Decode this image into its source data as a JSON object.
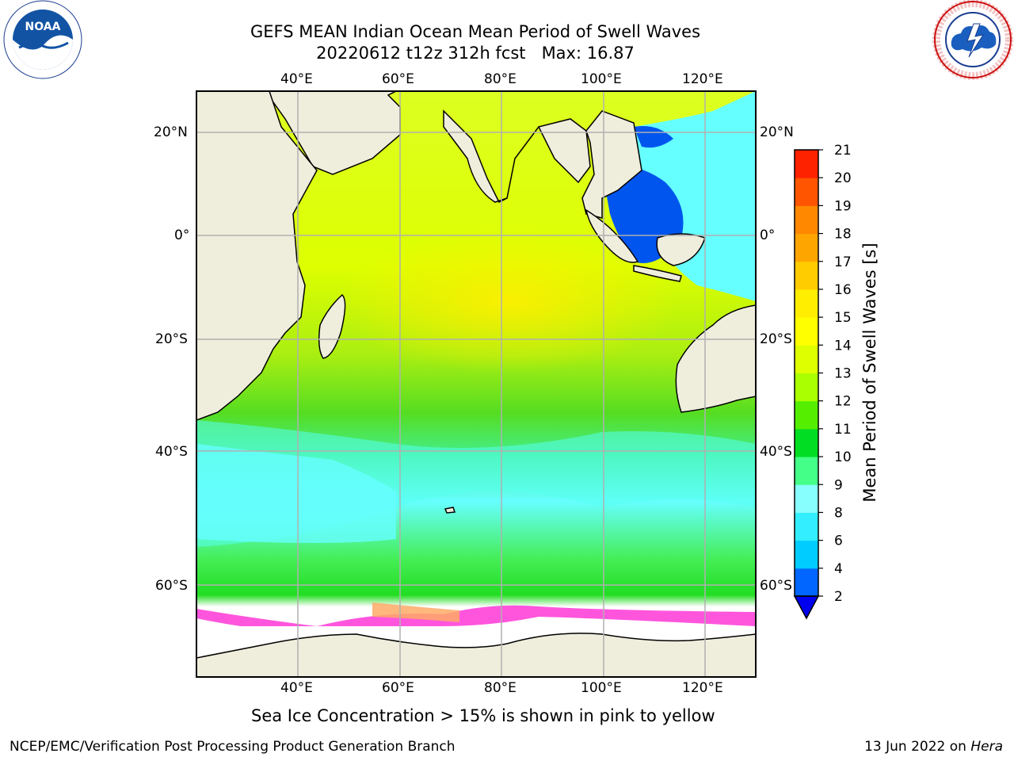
{
  "title": {
    "line1": "GEFS MEAN Indian Ocean Mean Period of Swell Waves",
    "line2": "20220612 t12z 312h fcst   Max: 16.87"
  },
  "logos": {
    "left": {
      "icon": "noaa-logo",
      "text": "NOAA",
      "ring_text": "NATIONAL OCEANIC AND ATMOSPHERIC ADMINISTRATION · U.S. DEPARTMENT OF COMMERCE"
    },
    "right": {
      "icon": "nws-logo",
      "ring_text": "NATIONAL WEATHER SERVICE"
    }
  },
  "map": {
    "lon_ticks": [
      "40°E",
      "60°E",
      "80°E",
      "100°E",
      "120°E"
    ],
    "lat_ticks": [
      "20°N",
      "0°",
      "20°S",
      "40°S",
      "60°S"
    ],
    "colors": {
      "land": "#efeddc",
      "ice": "#ffffff",
      "coast": "#000000",
      "grid": "#b0b0b0"
    }
  },
  "colorbar": {
    "label": "Mean Period of Swell Waves [s]",
    "ticks": [
      "2",
      "4",
      "6",
      "8",
      "9",
      "10",
      "11",
      "12",
      "13",
      "14",
      "15",
      "16",
      "17",
      "18",
      "19",
      "20",
      "21"
    ],
    "colors": [
      "#0066ff",
      "#00ccff",
      "#33eeff",
      "#88ffff",
      "#44ff88",
      "#00dd22",
      "#55ee00",
      "#aaff00",
      "#ddff00",
      "#ffff00",
      "#ffee00",
      "#ffcc00",
      "#ffa500",
      "#ff8800",
      "#ff5500",
      "#ff2200"
    ],
    "extend_color": "#0000ee"
  },
  "caption": "Sea Ice Concentration > 15% is shown in pink to yellow",
  "footer": {
    "left": "NCEP/EMC/Verification Post Processing Product Generation Branch",
    "right_prefix": "13 Jun 2022 on ",
    "right_host": "Hera"
  }
}
